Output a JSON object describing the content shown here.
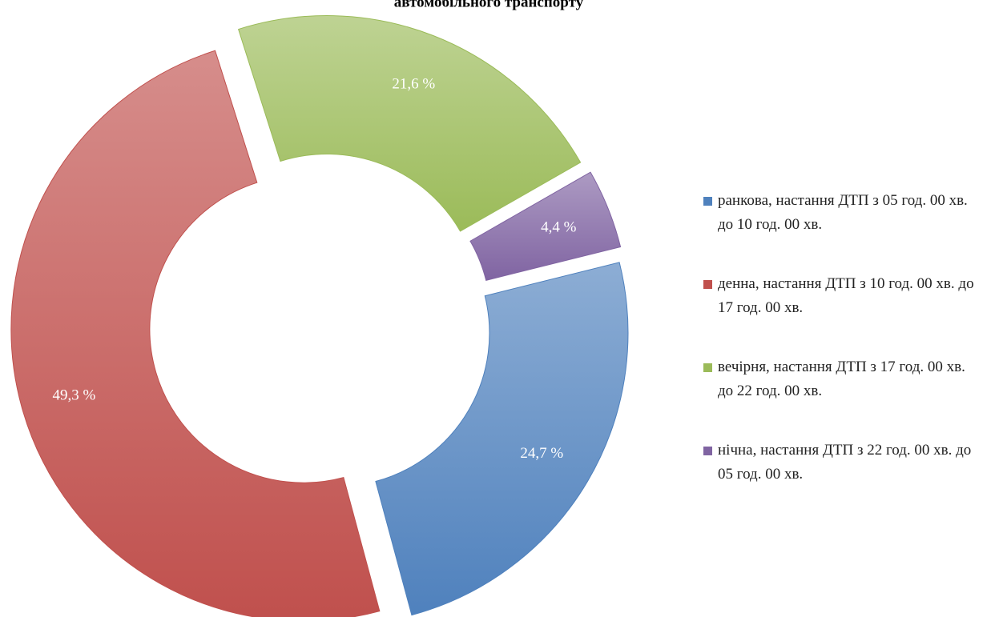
{
  "chart_data": {
    "type": "donut",
    "title": "автомобільного транспорту",
    "categories": [
      "ранкова, настання ДТП з 05 год. 00 хв. до 10 год. 00 хв.",
      "денна, настання ДТП з 10 год. 00 хв. до 17 год. 00 хв.",
      "вечірня, настання ДТП з 17 год. 00 хв. до 22 год. 00 хв.",
      "нічна, настання ДТП з 22 год. 00 хв. до 05 год. 00 хв."
    ],
    "values": [
      24.7,
      49.3,
      21.6,
      4.4
    ],
    "value_labels": [
      "24,7 %",
      "49,3 %",
      "21,6 %",
      "4,4 %"
    ],
    "colors": [
      "#4f81bd",
      "#c0504d",
      "#9bbb59",
      "#8064a2"
    ],
    "legend": "right"
  }
}
